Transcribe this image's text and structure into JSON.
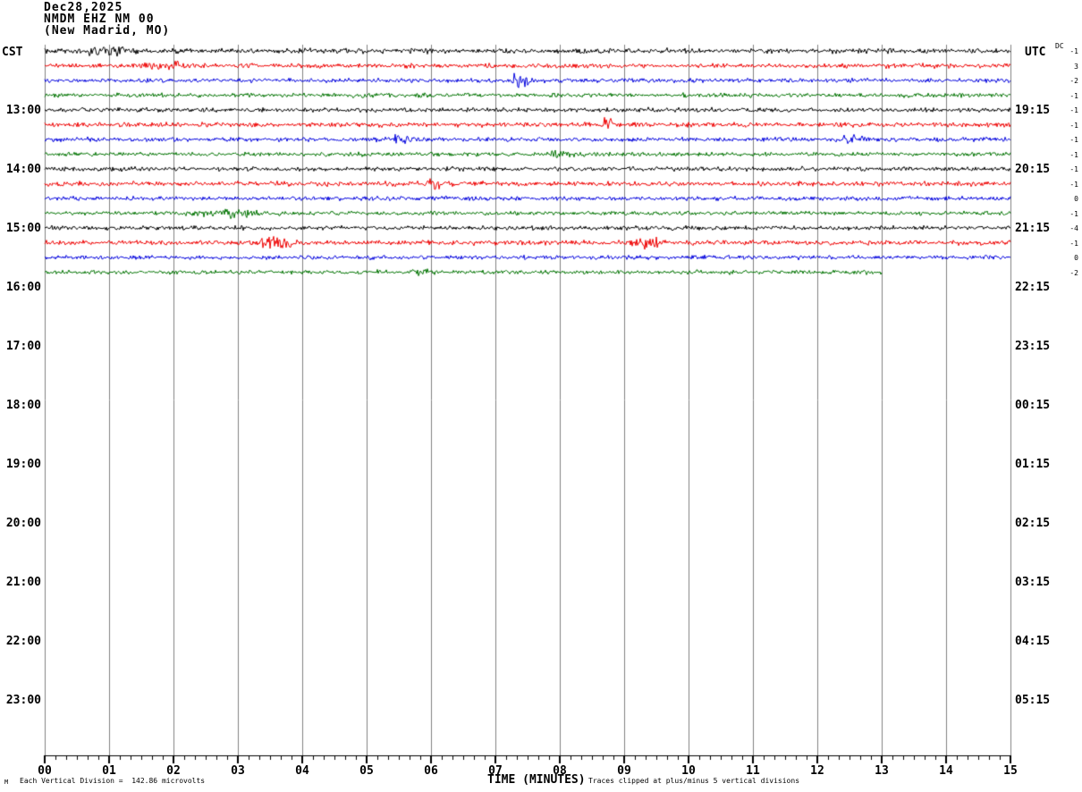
{
  "header": {
    "date": "Dec28,2025",
    "station": "NMDM EHZ NM 00",
    "location": "(New Madrid, MO)"
  },
  "axes": {
    "left_timezone": "CST",
    "right_timezone": "UTC",
    "dc_label": "DC",
    "left_hour_labels": [
      "13:00",
      "14:00",
      "15:00",
      "16:00",
      "17:00",
      "18:00",
      "19:00",
      "20:00",
      "21:00",
      "22:00",
      "23:00"
    ],
    "right_utc_labels": [
      "19:15",
      "20:15",
      "21:15",
      "22:15",
      "23:15",
      "00:15",
      "01:15",
      "02:15",
      "03:15",
      "04:15",
      "05:15"
    ],
    "x_tick_labels": [
      "00",
      "01",
      "02",
      "03",
      "04",
      "05",
      "06",
      "07",
      "08",
      "09",
      "10",
      "11",
      "12",
      "13",
      "14",
      "15"
    ],
    "x_axis_title": "TIME (MINUTES)"
  },
  "footer": {
    "scale_note": "Each Vertical Division =  142.86 microvolts",
    "clip_note": "Traces clipped at plus/minus 5 vertical divisions",
    "watermark": "M"
  },
  "chart_data": {
    "type": "line",
    "description": "Helicorder seismogram: 16 quarter-hour trace rows of continuous noise, 15 minutes per row, colors cycling black/red/blue/green; last row ends at minute 13.",
    "x_range_minutes": [
      0,
      15
    ],
    "minutes_per_row": 15,
    "minor_ticks_per_minute": 5,
    "grid": true,
    "legend_position": "none",
    "colors": {
      "black": "#000000",
      "red": "#ee0000",
      "blue": "#0000dd",
      "green": "#007300",
      "grid": "#808080",
      "axis": "#000000"
    },
    "row_color_cycle": [
      "black",
      "red",
      "blue",
      "green"
    ],
    "rows": [
      {
        "cst_start": "12:00",
        "color": "black",
        "dc": -1,
        "end_minute": 15,
        "noise_amp": 1.35,
        "seed": 11,
        "events": [
          {
            "minute": 0.95,
            "width": 0.25,
            "amp": 2.2
          }
        ]
      },
      {
        "cst_start": "12:15",
        "color": "red",
        "dc": 3,
        "end_minute": 15,
        "noise_amp": 1.3,
        "seed": 22,
        "events": [
          {
            "minute": 1.9,
            "width": 0.3,
            "amp": 1.1
          }
        ]
      },
      {
        "cst_start": "12:30",
        "color": "blue",
        "dc": -2,
        "end_minute": 15,
        "noise_amp": 1.2,
        "seed": 33,
        "events": [
          {
            "minute": 7.35,
            "width": 0.05,
            "amp": 7.5
          },
          {
            "minute": 7.5,
            "width": 0.04,
            "amp": 3.5
          }
        ]
      },
      {
        "cst_start": "12:45",
        "color": "green",
        "dc": -1,
        "end_minute": 15,
        "noise_amp": 1.15,
        "seed": 44,
        "events": []
      },
      {
        "cst_start": "13:00",
        "color": "black",
        "dc": -1,
        "end_minute": 15,
        "noise_amp": 1.2,
        "seed": 55,
        "events": []
      },
      {
        "cst_start": "13:15",
        "color": "red",
        "dc": -1,
        "end_minute": 15,
        "noise_amp": 1.3,
        "seed": 66,
        "events": [
          {
            "minute": 8.75,
            "width": 0.08,
            "amp": 3.5
          }
        ]
      },
      {
        "cst_start": "13:30",
        "color": "blue",
        "dc": -1,
        "end_minute": 15,
        "noise_amp": 1.2,
        "seed": 77,
        "events": [
          {
            "minute": 5.55,
            "width": 0.1,
            "amp": 2.8
          },
          {
            "minute": 12.55,
            "width": 0.12,
            "amp": 2.0
          }
        ]
      },
      {
        "cst_start": "13:45",
        "color": "green",
        "dc": -1,
        "end_minute": 15,
        "noise_amp": 1.1,
        "seed": 88,
        "events": [
          {
            "minute": 7.9,
            "width": 0.2,
            "amp": 1.2
          }
        ]
      },
      {
        "cst_start": "14:00",
        "color": "black",
        "dc": -1,
        "end_minute": 15,
        "noise_amp": 1.2,
        "seed": 99,
        "events": []
      },
      {
        "cst_start": "14:15",
        "color": "red",
        "dc": -1,
        "end_minute": 15,
        "noise_amp": 1.3,
        "seed": 110,
        "events": [
          {
            "minute": 6.05,
            "width": 0.07,
            "amp": 3.2
          }
        ]
      },
      {
        "cst_start": "14:30",
        "color": "blue",
        "dc": 0,
        "end_minute": 15,
        "noise_amp": 1.2,
        "seed": 121,
        "events": []
      },
      {
        "cst_start": "14:45",
        "color": "green",
        "dc": -1,
        "end_minute": 15,
        "noise_amp": 1.1,
        "seed": 132,
        "events": [
          {
            "minute": 2.85,
            "width": 0.35,
            "amp": 1.6
          }
        ]
      },
      {
        "cst_start": "15:00",
        "color": "black",
        "dc": -4,
        "end_minute": 15,
        "noise_amp": 1.2,
        "seed": 143,
        "events": []
      },
      {
        "cst_start": "15:15",
        "color": "red",
        "dc": -1,
        "end_minute": 15,
        "noise_amp": 1.3,
        "seed": 154,
        "events": [
          {
            "minute": 3.55,
            "width": 0.18,
            "amp": 3.0
          },
          {
            "minute": 9.35,
            "width": 0.15,
            "amp": 2.4
          }
        ]
      },
      {
        "cst_start": "15:30",
        "color": "blue",
        "dc": 0,
        "end_minute": 15,
        "noise_amp": 1.1,
        "seed": 165,
        "events": []
      },
      {
        "cst_start": "15:45",
        "color": "green",
        "dc": -2,
        "end_minute": 13,
        "noise_amp": 1.1,
        "seed": 176,
        "events": [
          {
            "minute": 5.85,
            "width": 0.1,
            "amp": 2.2
          }
        ]
      }
    ]
  }
}
